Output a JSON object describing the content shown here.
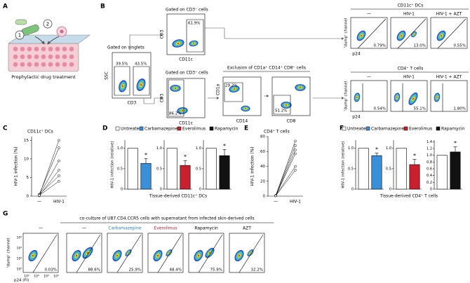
{
  "panel_labels": [
    "A",
    "B",
    "C",
    "D",
    "E",
    "F",
    "G"
  ],
  "a": {
    "steps": [
      "1",
      "2"
    ],
    "caption": "Prophylactic drug treatment"
  },
  "b": {
    "singlets": {
      "title": "Gated on singlets",
      "y_label": "SSC",
      "x_label": "CD3",
      "gates": [
        "39.5%",
        "43.5%"
      ]
    },
    "cd3neg": {
      "title": "Gated on CD3⁻ cells",
      "y_label": "CD3",
      "x_label": "CD11c",
      "gate": "61.9%"
    },
    "cd3pos": {
      "title": "Gated on CD3⁺ cells",
      "y_label": "CD3",
      "x_label": "CD11c",
      "gate": "86.2%"
    },
    "exclusion": {
      "title": "Exclusion of CD1a⁺ CD14⁺ CD8⁺ cells",
      "plots": [
        {
          "y_label": "CD1a",
          "x_label": "CD14",
          "gate": "29.2%"
        },
        {
          "x_label": "CD8",
          "gate": "51.2%"
        }
      ]
    },
    "dc": {
      "title": "CD11c⁺ DCs",
      "y_label": "'dump' channel",
      "x_label": "p24",
      "conditions": [
        "—",
        "HIV-1",
        "HIV-1 + AZT"
      ],
      "gates": [
        "0.79%",
        "13.0%",
        "0.55%"
      ]
    },
    "t": {
      "title": "CD4⁺ T cells",
      "y_label": "'dump' channel",
      "x_label": "p24",
      "conditions": [
        "—",
        "HIV-1",
        "HIV-1 + AZT"
      ],
      "gates": [
        "0.54%",
        "55.1%",
        "1.80%"
      ]
    }
  },
  "c": {
    "type": "line",
    "title": "CD11c⁺ DCs",
    "y_label": "HIV-1 infection (%)",
    "categories": [
      "—",
      "HIV-1"
    ],
    "donors": [
      [
        0.2,
        15
      ],
      [
        0.5,
        13
      ],
      [
        0.3,
        9.5
      ],
      [
        0.1,
        7
      ],
      [
        0.4,
        5.5
      ],
      [
        0.2,
        4
      ]
    ],
    "ylim": [
      0,
      16
    ],
    "yticks": [
      0,
      5,
      10,
      15
    ]
  },
  "d": {
    "type": "bar",
    "y_label": "HIV-1 infection (relative)",
    "x_label": "Tissue-derived CD11c⁺ DCs",
    "legend": [
      {
        "name": "Untreated",
        "color": "#ffffff"
      },
      {
        "name": "Carbamazepine",
        "color": "#3a8fd9"
      },
      {
        "name": "Everolimus",
        "color": "#c8202f"
      },
      {
        "name": "Rapamycin",
        "color": "#111111"
      }
    ],
    "panels": [
      {
        "bars": [
          {
            "legend": 0,
            "value": 1
          },
          {
            "legend": 1,
            "value": 0.63,
            "error": 0.12
          }
        ],
        "ylim": [
          0,
          1.2
        ],
        "yticks": [
          0,
          0.5,
          {
            "value": 1,
            "label": "1.0"
          }
        ],
        "mark": "*"
      },
      {
        "bars": [
          {
            "legend": 0,
            "value": 1
          },
          {
            "legend": 2,
            "value": 0.58,
            "error": 0.12
          }
        ],
        "ylim": [
          0,
          1.2
        ],
        "yticks": [
          0,
          0.5,
          {
            "value": 1,
            "label": "1.0"
          }
        ],
        "mark": "*"
      },
      {
        "bars": [
          {
            "legend": 0,
            "value": 1
          },
          {
            "legend": 3,
            "value": 0.82,
            "error": 0.15
          }
        ],
        "ylim": [
          0,
          1.2
        ],
        "yticks": [
          0,
          0.5,
          {
            "value": 1,
            "label": "1.0"
          }
        ],
        "mark": "*"
      }
    ]
  },
  "e": {
    "type": "line",
    "title": "CD4⁺ T cells",
    "y_label": "HIV-1 infection (%)",
    "categories": [
      "—",
      "HIV-1"
    ],
    "donors": [
      [
        0.5,
        74
      ],
      [
        1,
        68
      ],
      [
        0.5,
        62
      ],
      [
        0.3,
        57
      ],
      [
        0.8,
        40
      ],
      [
        0.4,
        35
      ]
    ],
    "ylim": [
      0,
      80
    ],
    "yticks": [
      0,
      20,
      40,
      60,
      80
    ]
  },
  "f": {
    "type": "bar",
    "y_label": "HIV-1 infection (relative)",
    "x_label": "Tissue-derived CD4⁺ T cells",
    "legend": [
      {
        "name": "Untreated",
        "color": "#ffffff"
      },
      {
        "name": "Carbamazepine",
        "color": "#3a8fd9"
      },
      {
        "name": "Everolimus",
        "color": "#c8202f"
      },
      {
        "name": "Rapamycin",
        "color": "#111111"
      }
    ],
    "panels": [
      {
        "bars": [
          {
            "legend": 0,
            "value": 1
          },
          {
            "legend": 1,
            "value": 0.82,
            "error": 0.06
          }
        ],
        "ylim": [
          0,
          1.2
        ],
        "yticks": [
          0,
          0.5,
          {
            "value": 1,
            "label": "1.0"
          }
        ],
        "mark": "*"
      },
      {
        "bars": [
          {
            "legend": 0,
            "value": 1
          },
          {
            "legend": 2,
            "value": 0.6,
            "error": 0.13
          }
        ],
        "ylim": [
          0,
          1.2
        ],
        "yticks": [
          0,
          0.5,
          {
            "value": 1,
            "label": "1.0"
          }
        ],
        "mark": "*"
      },
      {
        "bars": [
          {
            "legend": 0,
            "value": 1
          },
          {
            "legend": 3,
            "value": 1.1,
            "error": 0.15
          }
        ],
        "ylim": [
          0,
          1.45
        ],
        "yticks": [
          0,
          0.2,
          0.4,
          0.6,
          0.8,
          {
            "value": 1,
            "label": "1.0"
          },
          1.2,
          1.4
        ],
        "mark": "*"
      }
    ]
  },
  "g": {
    "header": "co-culture of U87.CD4.CCR5 cells with supernatant from infected skin-derived cells",
    "y_label": "'dump' channel",
    "x_label": "p24 (FI)",
    "ticks": [
      "10²",
      "10³",
      "10⁴",
      "10⁵"
    ],
    "conditions": [
      {
        "label": "—",
        "color": "#000000"
      },
      {
        "label": "—",
        "color": "#000000"
      },
      {
        "label": "Carbamazepine",
        "color": "#2b7fd6"
      },
      {
        "label": "Everolimus",
        "color": "#c8202f"
      },
      {
        "label": "Rapamycin",
        "color": "#000000"
      },
      {
        "label": "AZT",
        "color": "#000000"
      }
    ],
    "gates": [
      "0.03%",
      "88.6%",
      "25.9%",
      "48.4%",
      "75.9%",
      "32.2%"
    ]
  }
}
